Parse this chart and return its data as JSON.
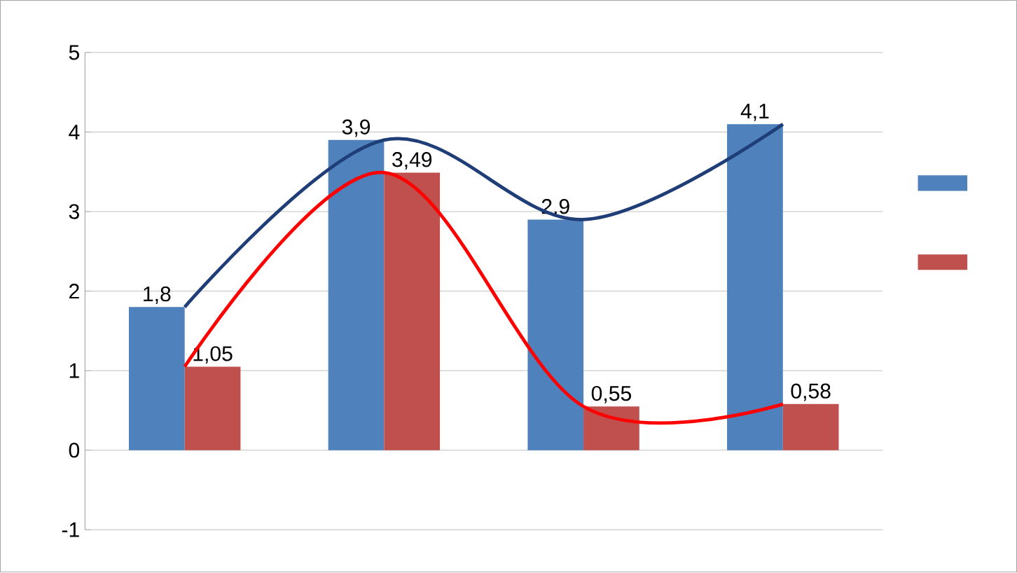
{
  "chart_data": {
    "type": "bar",
    "categories": [
      null,
      null,
      null,
      null
    ],
    "series": [
      {
        "color": "#4f81bd",
        "values": [
          1.8,
          3.9,
          2.9,
          4.1
        ],
        "value_labels": [
          "1,8",
          "3,9",
          "2,9",
          "4,1"
        ]
      },
      {
        "color": "#c0504d",
        "values": [
          1.05,
          3.49,
          0.55,
          0.58
        ],
        "value_labels": [
          "1,05",
          "3,49",
          "0,55",
          "0,58"
        ]
      },
      {
        "type": "line",
        "color": "#1f3e78",
        "values": [
          1.8,
          3.9,
          2.9,
          4.1
        ]
      },
      {
        "type": "line",
        "color": "#ff0000",
        "values": [
          1.05,
          3.49,
          0.55,
          0.58
        ]
      }
    ],
    "ylim": [
      -1,
      5
    ],
    "yticks": [
      -1,
      0,
      1,
      2,
      3,
      4,
      5
    ],
    "grid": "y",
    "marker": "none",
    "line_style": "solid"
  }
}
